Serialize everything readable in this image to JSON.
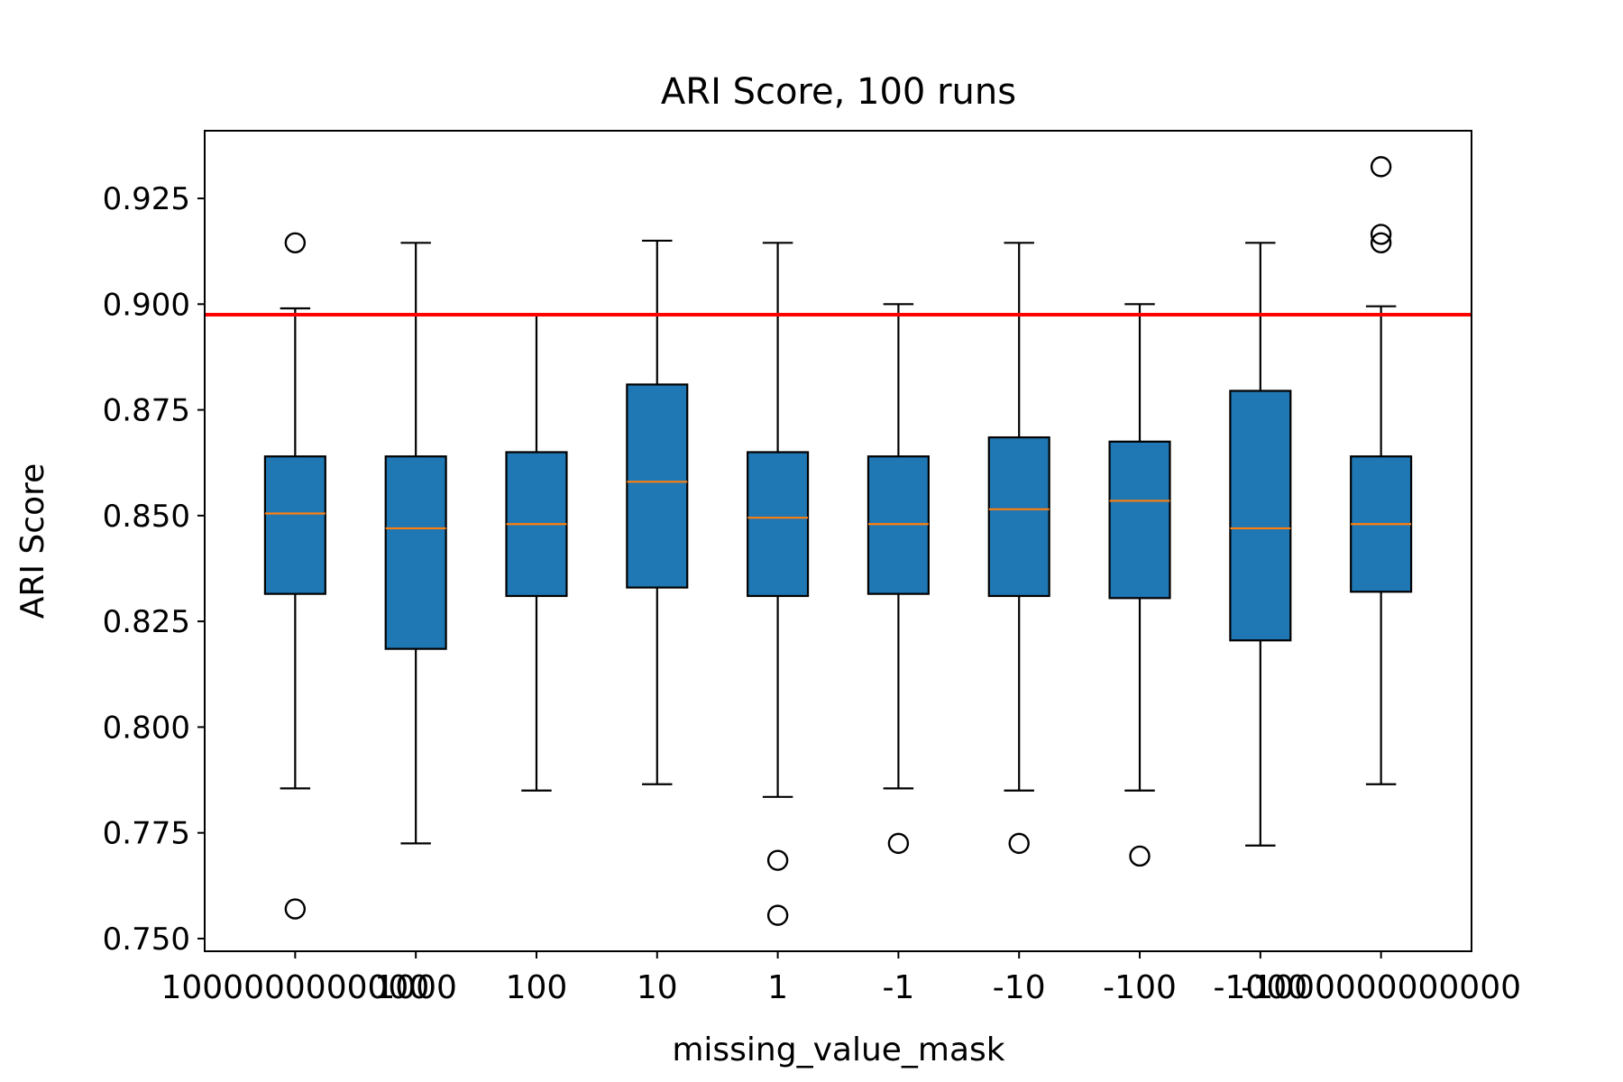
{
  "chart_data": {
    "type": "box",
    "title": "ARI Score, 100 runs",
    "xlabel": "missing_value_mask",
    "ylabel": "ARI Score",
    "ylim": [
      0.747,
      0.941
    ],
    "yticks": [
      "0.750",
      "0.775",
      "0.800",
      "0.825",
      "0.850",
      "0.875",
      "0.900",
      "0.925"
    ],
    "ytick_values": [
      0.75,
      0.775,
      0.8,
      0.825,
      0.85,
      0.875,
      0.9,
      0.925
    ],
    "reference_line": {
      "value": 0.8975,
      "color": "#ff0000"
    },
    "box_color": "#1f77b4",
    "median_color": "#ff7f0e",
    "grid": false,
    "categories": [
      "1000000000000",
      "1000",
      "100",
      "10",
      "1",
      "-1",
      "-10",
      "-100",
      "-1000",
      "-1000000000000"
    ],
    "boxes": [
      {
        "label": "1000000000000",
        "whislo": 0.7855,
        "q1": 0.8315,
        "med": 0.8505,
        "q3": 0.864,
        "whishi": 0.899,
        "fliers": [
          0.757,
          0.9145
        ]
      },
      {
        "label": "1000",
        "whislo": 0.7725,
        "q1": 0.8185,
        "med": 0.847,
        "q3": 0.864,
        "whishi": 0.9145,
        "fliers": []
      },
      {
        "label": "100",
        "whislo": 0.785,
        "q1": 0.831,
        "med": 0.848,
        "q3": 0.865,
        "whishi": 0.8975,
        "fliers": []
      },
      {
        "label": "10",
        "whislo": 0.7865,
        "q1": 0.833,
        "med": 0.858,
        "q3": 0.881,
        "whishi": 0.915,
        "fliers": []
      },
      {
        "label": "1",
        "whislo": 0.7835,
        "q1": 0.831,
        "med": 0.8495,
        "q3": 0.865,
        "whishi": 0.9145,
        "fliers": [
          0.7685,
          0.7555
        ]
      },
      {
        "label": "-1",
        "whislo": 0.7855,
        "q1": 0.8315,
        "med": 0.848,
        "q3": 0.864,
        "whishi": 0.9,
        "fliers": [
          0.7725
        ]
      },
      {
        "label": "-10",
        "whislo": 0.785,
        "q1": 0.831,
        "med": 0.8515,
        "q3": 0.8685,
        "whishi": 0.9145,
        "fliers": [
          0.7725
        ]
      },
      {
        "label": "-100",
        "whislo": 0.785,
        "q1": 0.8305,
        "med": 0.8535,
        "q3": 0.8675,
        "whishi": 0.9,
        "fliers": [
          0.7695
        ]
      },
      {
        "label": "-1000",
        "whislo": 0.772,
        "q1": 0.8205,
        "med": 0.847,
        "q3": 0.8795,
        "whishi": 0.9145,
        "fliers": []
      },
      {
        "label": "-1000000000000",
        "whislo": 0.7865,
        "q1": 0.832,
        "med": 0.848,
        "q3": 0.864,
        "whishi": 0.8995,
        "fliers": [
          0.9325,
          0.9165,
          0.9145
        ]
      }
    ]
  }
}
